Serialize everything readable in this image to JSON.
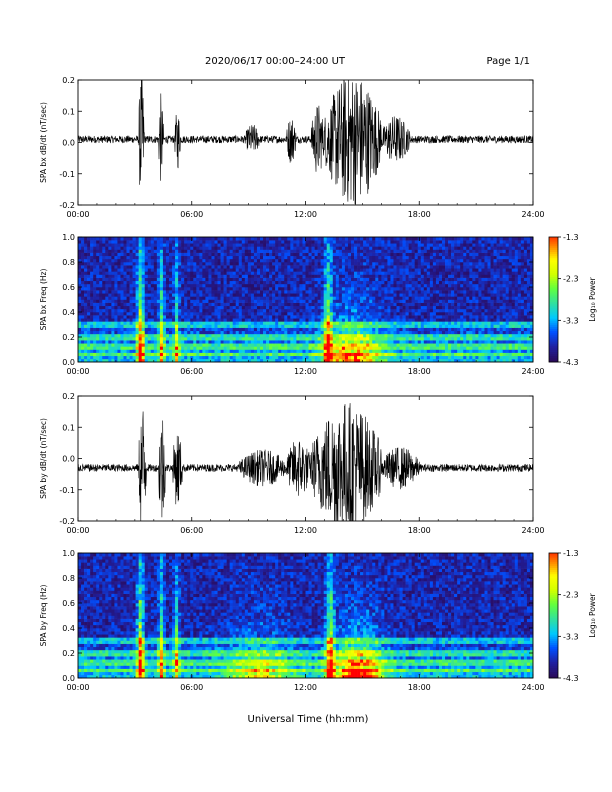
{
  "header": {
    "date_range": "2020/06/17  00:00–24:00 UT",
    "page": "Page 1/1"
  },
  "footer": {
    "xlabel": "Universal Time (hh:mm)"
  },
  "colors": {
    "trace": "#000000",
    "colormap": [
      "#1a0022",
      "#2a0a5a",
      "#2020a0",
      "#0050ff",
      "#00c8ff",
      "#30e0a0",
      "#60ff40",
      "#d0ff00",
      "#ffff00",
      "#ff8000",
      "#ff0000"
    ]
  },
  "chart_data": [
    {
      "type": "line",
      "ylabel": "SPA bx dB/dt (nT/sec)",
      "xlim": [
        "00:00",
        "24:00"
      ],
      "ylim": [
        -0.2,
        0.2
      ],
      "xticks": [
        "00:00",
        "06:00",
        "12:00",
        "18:00",
        "24:00"
      ],
      "yticks": [
        "-0.2",
        "-0.1",
        "0.0",
        "0.1",
        "0.2"
      ],
      "ytick_values": [
        -0.2,
        -0.1,
        0.0,
        0.1,
        0.2
      ],
      "baseline": 0.01,
      "series": [
        {
          "bursts": [
            {
              "start_h": 3.2,
              "end_h": 3.5,
              "peak": 0.22
            },
            {
              "start_h": 4.25,
              "end_h": 4.5,
              "peak": 0.15
            },
            {
              "start_h": 5.1,
              "end_h": 5.4,
              "peak": 0.1
            },
            {
              "start_h": 8.8,
              "end_h": 9.6,
              "peak": 0.05
            },
            {
              "start_h": 11.0,
              "end_h": 11.5,
              "peak": 0.08
            },
            {
              "start_h": 12.3,
              "end_h": 13.0,
              "peak": 0.12
            },
            {
              "start_h": 13.0,
              "end_h": 16.0,
              "peak": 0.22
            },
            {
              "start_h": 16.0,
              "end_h": 17.5,
              "peak": 0.08
            }
          ],
          "noise": 0.012
        }
      ]
    },
    {
      "type": "heatmap",
      "ylabel": "SPA bx Freq (Hz)",
      "xlim": [
        "00:00",
        "24:00"
      ],
      "ylim": [
        0.0,
        1.0
      ],
      "xticks": [
        "00:00",
        "06:00",
        "12:00",
        "18:00",
        "24:00"
      ],
      "yticks": [
        "0.0",
        "0.2",
        "0.4",
        "0.6",
        "0.8",
        "1.0"
      ],
      "ytick_values": [
        0.0,
        0.2,
        0.4,
        0.6,
        0.8,
        1.0
      ],
      "colorbar": {
        "label": "Log₁₀ Power",
        "ticks": [
          "-1.3",
          "-2.3",
          "-3.3",
          "-4.3"
        ],
        "tick_values": [
          -1.3,
          -2.3,
          -3.3,
          -4.3
        ],
        "range": [
          -4.3,
          -1.3
        ]
      },
      "lines_hz": [
        0.07,
        0.1,
        0.14,
        0.18,
        0.22,
        0.25,
        0.28,
        0.31
      ],
      "events": [
        {
          "t_h": 3.3,
          "width_h": 0.25,
          "strength": 0.95
        },
        {
          "t_h": 4.4,
          "width_h": 0.2,
          "strength": 0.7
        },
        {
          "t_h": 5.2,
          "width_h": 0.2,
          "strength": 0.55
        },
        {
          "t_h": 13.2,
          "width_h": 0.3,
          "strength": 0.8
        },
        {
          "t_h": 14.5,
          "width_h": 2.0,
          "strength": 0.75
        }
      ]
    },
    {
      "type": "line",
      "ylabel": "SPA by dB/dt (nT/sec)",
      "xlim": [
        "00:00",
        "24:00"
      ],
      "ylim": [
        -0.2,
        0.2
      ],
      "xticks": [
        "00:00",
        "06:00",
        "12:00",
        "18:00",
        "24:00"
      ],
      "yticks": [
        "-0.2",
        "-0.1",
        "0.0",
        "0.1",
        "0.2"
      ],
      "ytick_values": [
        -0.2,
        -0.1,
        0.0,
        0.1,
        0.2
      ],
      "baseline": -0.03,
      "series": [
        {
          "bursts": [
            {
              "start_h": 3.2,
              "end_h": 3.6,
              "peak": 0.22
            },
            {
              "start_h": 4.25,
              "end_h": 4.6,
              "peak": 0.2
            },
            {
              "start_h": 5.0,
              "end_h": 5.5,
              "peak": 0.13
            },
            {
              "start_h": 8.5,
              "end_h": 11.0,
              "peak": 0.06
            },
            {
              "start_h": 11.0,
              "end_h": 12.3,
              "peak": 0.1
            },
            {
              "start_h": 12.3,
              "end_h": 16.0,
              "peak": 0.22
            },
            {
              "start_h": 16.0,
              "end_h": 18.0,
              "peak": 0.07
            }
          ],
          "noise": 0.012
        }
      ]
    },
    {
      "type": "heatmap",
      "ylabel": "SPA by Freq (Hz)",
      "xlim": [
        "00:00",
        "24:00"
      ],
      "ylim": [
        0.0,
        1.0
      ],
      "xticks": [
        "00:00",
        "06:00",
        "12:00",
        "18:00",
        "24:00"
      ],
      "yticks": [
        "0.0",
        "0.2",
        "0.4",
        "0.6",
        "0.8",
        "1.0"
      ],
      "ytick_values": [
        0.0,
        0.2,
        0.4,
        0.6,
        0.8,
        1.0
      ],
      "colorbar": {
        "label": "Log₁₀ Power",
        "ticks": [
          "-1.3",
          "-2.3",
          "-3.3",
          "-4.3"
        ],
        "tick_values": [
          -1.3,
          -2.3,
          -3.3,
          -4.3
        ],
        "range": [
          -4.3,
          -1.3
        ]
      },
      "lines_hz": [
        0.07,
        0.1,
        0.14,
        0.18,
        0.22,
        0.25,
        0.28,
        0.31
      ],
      "events": [
        {
          "t_h": 3.3,
          "width_h": 0.25,
          "strength": 0.95
        },
        {
          "t_h": 4.4,
          "width_h": 0.2,
          "strength": 0.7
        },
        {
          "t_h": 5.2,
          "width_h": 0.2,
          "strength": 0.6
        },
        {
          "t_h": 9.5,
          "width_h": 2.5,
          "strength": 0.45
        },
        {
          "t_h": 13.3,
          "width_h": 0.3,
          "strength": 0.85
        },
        {
          "t_h": 14.8,
          "width_h": 1.8,
          "strength": 0.85
        }
      ]
    }
  ]
}
